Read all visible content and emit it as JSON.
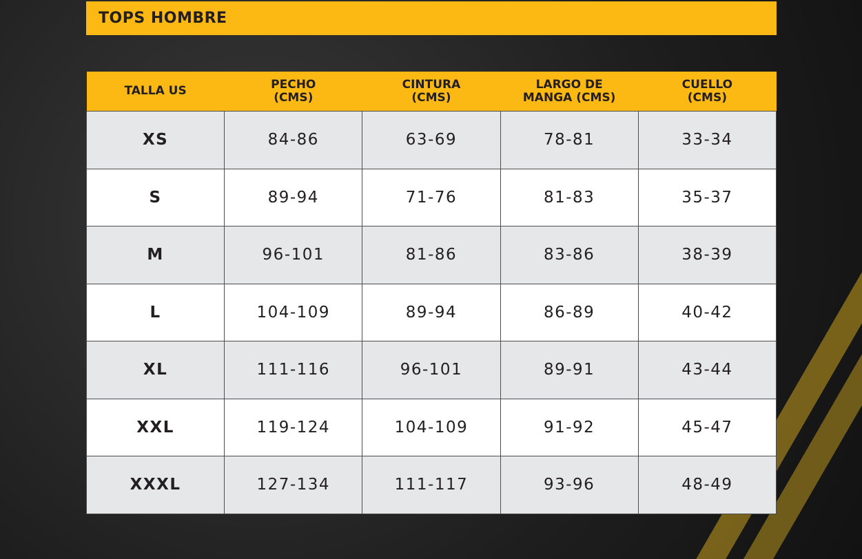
{
  "title": "TOPS HOMBRE",
  "colors": {
    "accent": "#fdb913",
    "row_alt": "#e6e7e8",
    "text": "#231f20"
  },
  "headers": [
    [
      "TALLA US"
    ],
    [
      "PECHO",
      "(CMS)"
    ],
    [
      "CINTURA",
      "(CMS)"
    ],
    [
      "LARGO DE",
      "MANGA (CMS)"
    ],
    [
      "CUELLO",
      "(CMS)"
    ]
  ],
  "rows": [
    [
      "XS",
      "84-86",
      "63-69",
      "78-81",
      "33-34"
    ],
    [
      "S",
      "89-94",
      "71-76",
      "81-83",
      "35-37"
    ],
    [
      "M",
      "96-101",
      "81-86",
      "83-86",
      "38-39"
    ],
    [
      "L",
      "104-109",
      "89-94",
      "86-89",
      "40-42"
    ],
    [
      "XL",
      "111-116",
      "96-101",
      "89-91",
      "43-44"
    ],
    [
      "XXL",
      "119-124",
      "104-109",
      "91-92",
      "45-47"
    ],
    [
      "XXXL",
      "127-134",
      "111-117",
      "93-96",
      "48-49"
    ]
  ]
}
